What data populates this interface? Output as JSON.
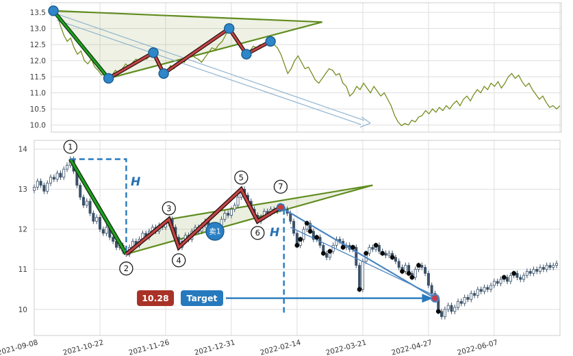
{
  "chart_data": [
    {
      "type": "line",
      "panel": "top",
      "title": "",
      "yticks": [
        "13.5",
        "13.0",
        "12.5",
        "12.0",
        "11.5",
        "11.0",
        "10.5",
        "10.0"
      ],
      "ylim": [
        9.78,
        13.8
      ],
      "series": [
        {
          "name": "price-line",
          "color": "#748d20",
          "values": [
            13.55,
            13.45,
            13.1,
            12.8,
            12.6,
            12.7,
            12.4,
            12.2,
            12.3,
            12.0,
            11.9,
            12.05,
            11.8,
            11.7,
            11.55,
            11.6,
            11.45,
            11.55,
            11.7,
            11.6,
            11.75,
            11.9,
            11.8,
            11.95,
            12.05,
            11.95,
            12.1,
            12.05,
            12.15,
            12.25,
            12.05,
            11.8,
            11.6,
            11.7,
            11.85,
            11.75,
            11.95,
            12.05,
            11.95,
            12.1,
            12.2,
            12.1,
            12.05,
            11.95,
            12.1,
            12.25,
            12.4,
            12.35,
            12.5,
            12.6,
            12.8,
            13.0,
            12.85,
            12.7,
            12.5,
            12.35,
            12.2,
            12.3,
            12.45,
            12.4,
            12.5,
            12.45,
            12.55,
            12.6,
            12.5,
            12.4,
            12.2,
            11.9,
            11.6,
            11.75,
            12.0,
            12.15,
            11.95,
            11.75,
            11.8,
            11.6,
            11.4,
            11.3,
            11.45,
            11.6,
            11.75,
            11.7,
            11.55,
            11.6,
            11.3,
            11.2,
            10.9,
            11.0,
            11.2,
            11.1,
            11.3,
            11.15,
            11.0,
            11.2,
            11.05,
            10.9,
            11.0,
            10.8,
            10.6,
            10.3,
            10.1,
            9.98,
            10.05,
            10.0,
            10.15,
            10.1,
            10.25,
            10.3,
            10.45,
            10.35,
            10.5,
            10.4,
            10.55,
            10.45,
            10.6,
            10.5,
            10.65,
            10.75,
            10.6,
            10.8,
            10.9,
            10.75,
            10.95,
            11.1,
            11.0,
            11.2,
            11.1,
            11.3,
            11.2,
            11.35,
            11.15,
            11.3,
            11.5,
            11.6,
            11.45,
            11.55,
            11.35,
            11.2,
            11.3,
            11.1,
            10.95,
            10.8,
            10.9,
            10.7,
            10.55,
            10.6,
            10.5,
            10.6
          ]
        }
      ],
      "overlays": {
        "impulse_line": {
          "points": [
            [
              0,
              13.55
            ],
            [
              16,
              11.45
            ]
          ],
          "color": "#1fa11f"
        },
        "zigzag": {
          "points": [
            [
              16,
              11.45
            ],
            [
              29,
              12.25
            ],
            [
              32,
              11.6
            ],
            [
              51,
              13.0
            ],
            [
              56,
              12.2
            ],
            [
              63,
              12.6
            ]
          ],
          "color": "#c44444"
        },
        "wedge": {
          "upper": [
            [
              0,
              13.55
            ],
            [
              78,
              13.2
            ]
          ],
          "lower": [
            [
              16,
              11.45
            ],
            [
              78,
              13.2
            ]
          ],
          "color": "#5f8c1e"
        },
        "pivot_dots": [
          [
            0,
            13.55
          ],
          [
            16,
            11.45
          ],
          [
            29,
            12.25
          ],
          [
            32,
            11.6
          ],
          [
            51,
            13.0
          ],
          [
            56,
            12.2
          ],
          [
            63,
            12.6
          ]
        ],
        "projection_arrow": {
          "from": [
            1,
            13.45
          ],
          "tip": [
            92,
            10.06
          ]
        }
      }
    },
    {
      "type": "candlestick",
      "panel": "bottom",
      "title": "",
      "yticks": [
        "14",
        "13",
        "12",
        "11",
        "10"
      ],
      "ylim": [
        9.35,
        14.22
      ],
      "x_tick_labels": [
        "2021-09-08",
        "2021-10-22",
        "2021-11-26",
        "2021-12-31",
        "2022-02-14",
        "2022-03-21",
        "2022-04-27",
        "2022-06-07"
      ],
      "x_tick_idx": [
        0,
        20,
        40,
        60,
        80,
        100,
        120,
        140
      ],
      "closes": [
        13.05,
        13.2,
        13.1,
        12.95,
        13.15,
        13.3,
        13.25,
        13.4,
        13.3,
        13.5,
        13.6,
        13.75,
        13.45,
        13.1,
        12.8,
        12.6,
        12.7,
        12.4,
        12.2,
        12.3,
        12.0,
        11.9,
        12.05,
        11.8,
        11.7,
        11.55,
        11.6,
        11.45,
        11.38,
        11.55,
        11.7,
        11.6,
        11.75,
        11.9,
        11.8,
        11.95,
        12.05,
        11.95,
        12.1,
        12.05,
        12.15,
        12.25,
        12.05,
        11.8,
        11.55,
        11.7,
        11.85,
        11.75,
        11.95,
        12.05,
        11.95,
        12.1,
        12.2,
        12.1,
        12.05,
        11.95,
        12.1,
        12.25,
        12.4,
        12.35,
        12.5,
        12.6,
        12.8,
        13.0,
        12.85,
        12.7,
        12.5,
        12.35,
        12.2,
        12.3,
        12.45,
        12.4,
        12.5,
        12.45,
        12.5,
        12.55,
        12.5,
        12.4,
        12.2,
        11.9,
        11.6,
        11.75,
        12.0,
        12.15,
        11.95,
        11.75,
        11.8,
        11.6,
        11.4,
        11.3,
        11.45,
        11.6,
        11.75,
        11.7,
        11.55,
        11.6,
        11.5,
        11.55,
        11.1,
        10.5,
        11.2,
        11.4,
        11.55,
        11.5,
        11.6,
        11.45,
        11.4,
        11.35,
        11.4,
        11.3,
        11.2,
        11.05,
        10.95,
        11.1,
        10.9,
        10.8,
        11.0,
        11.1,
        11.05,
        10.9,
        10.6,
        10.4,
        10.28,
        9.95,
        9.82,
        10.0,
        10.1,
        9.95,
        10.05,
        10.2,
        10.15,
        10.3,
        10.25,
        10.4,
        10.35,
        10.5,
        10.45,
        10.55,
        10.5,
        10.6,
        10.7,
        10.65,
        10.75,
        10.8,
        10.7,
        10.85,
        10.9,
        10.8,
        10.75,
        10.85,
        10.95,
        10.9,
        11.0,
        10.95,
        11.05,
        11.0,
        11.1,
        11.05,
        11.1,
        11.15
      ],
      "overlays": {
        "impulse_line": {
          "points": [
            [
              11,
              13.75
            ],
            [
              28,
              11.38
            ]
          ],
          "color": "#1fa11f"
        },
        "zigzag": {
          "points": [
            [
              28,
              11.38
            ],
            [
              41,
              12.25
            ],
            [
              44,
              11.55
            ],
            [
              63,
              13.0
            ],
            [
              68,
              12.2
            ],
            [
              75,
              12.55
            ]
          ],
          "color": "#c44444"
        },
        "wedge": {
          "upper": [
            [
              41,
              12.25
            ],
            [
              103,
              13.1
            ]
          ],
          "lower": [
            [
              28,
              11.38
            ],
            [
              103,
              13.1
            ]
          ],
          "color": "#5f8c1e"
        },
        "wave_labels": [
          {
            "n": "1",
            "i": 11,
            "p": 13.75,
            "dy": -18
          },
          {
            "n": "2",
            "i": 28,
            "p": 11.38,
            "dy": 21
          },
          {
            "n": "3",
            "i": 41,
            "p": 12.25,
            "dy": -16
          },
          {
            "n": "4",
            "i": 44,
            "p": 11.55,
            "dy": 19
          },
          {
            "n": "5",
            "i": 63,
            "p": 13.0,
            "dy": -17
          },
          {
            "n": "6",
            "i": 68,
            "p": 12.2,
            "dy": 17
          },
          {
            "n": "7",
            "i": 75,
            "p": 12.55,
            "dy": -30
          }
        ],
        "height_line_1": {
          "from": [
            11,
            13.75
          ],
          "to": [
            28,
            11.42
          ]
        },
        "height_line_2": {
          "i": 76,
          "top": 12.5,
          "bottom": 9.85
        },
        "h_label": "H",
        "sell_marker": {
          "label": "卖1",
          "i": 55,
          "p": 11.95
        },
        "decline_lines": [
          [
            [
              75,
              12.55
            ],
            [
              122,
              10.28
            ]
          ],
          [
            [
              78,
              12.05
            ],
            [
              122,
              10.34
            ]
          ]
        ],
        "start_marker": {
          "i": 75,
          "p": 12.55
        },
        "target_marker": {
          "i": 122,
          "p": 10.28
        },
        "target_arrow": {
          "price": 10.28,
          "x_start": 330
        },
        "black_dots": [
          80,
          81,
          83,
          84,
          86,
          88,
          90,
          94,
          97,
          99,
          101,
          104,
          106,
          109,
          112,
          114,
          115,
          117,
          123,
          143,
          146
        ],
        "price_badge": "10.28",
        "target_badge": "Target"
      },
      "colors": {
        "candle": "#3b5168",
        "dashed": "#2779bd",
        "decline": "#4a86c2"
      }
    }
  ]
}
